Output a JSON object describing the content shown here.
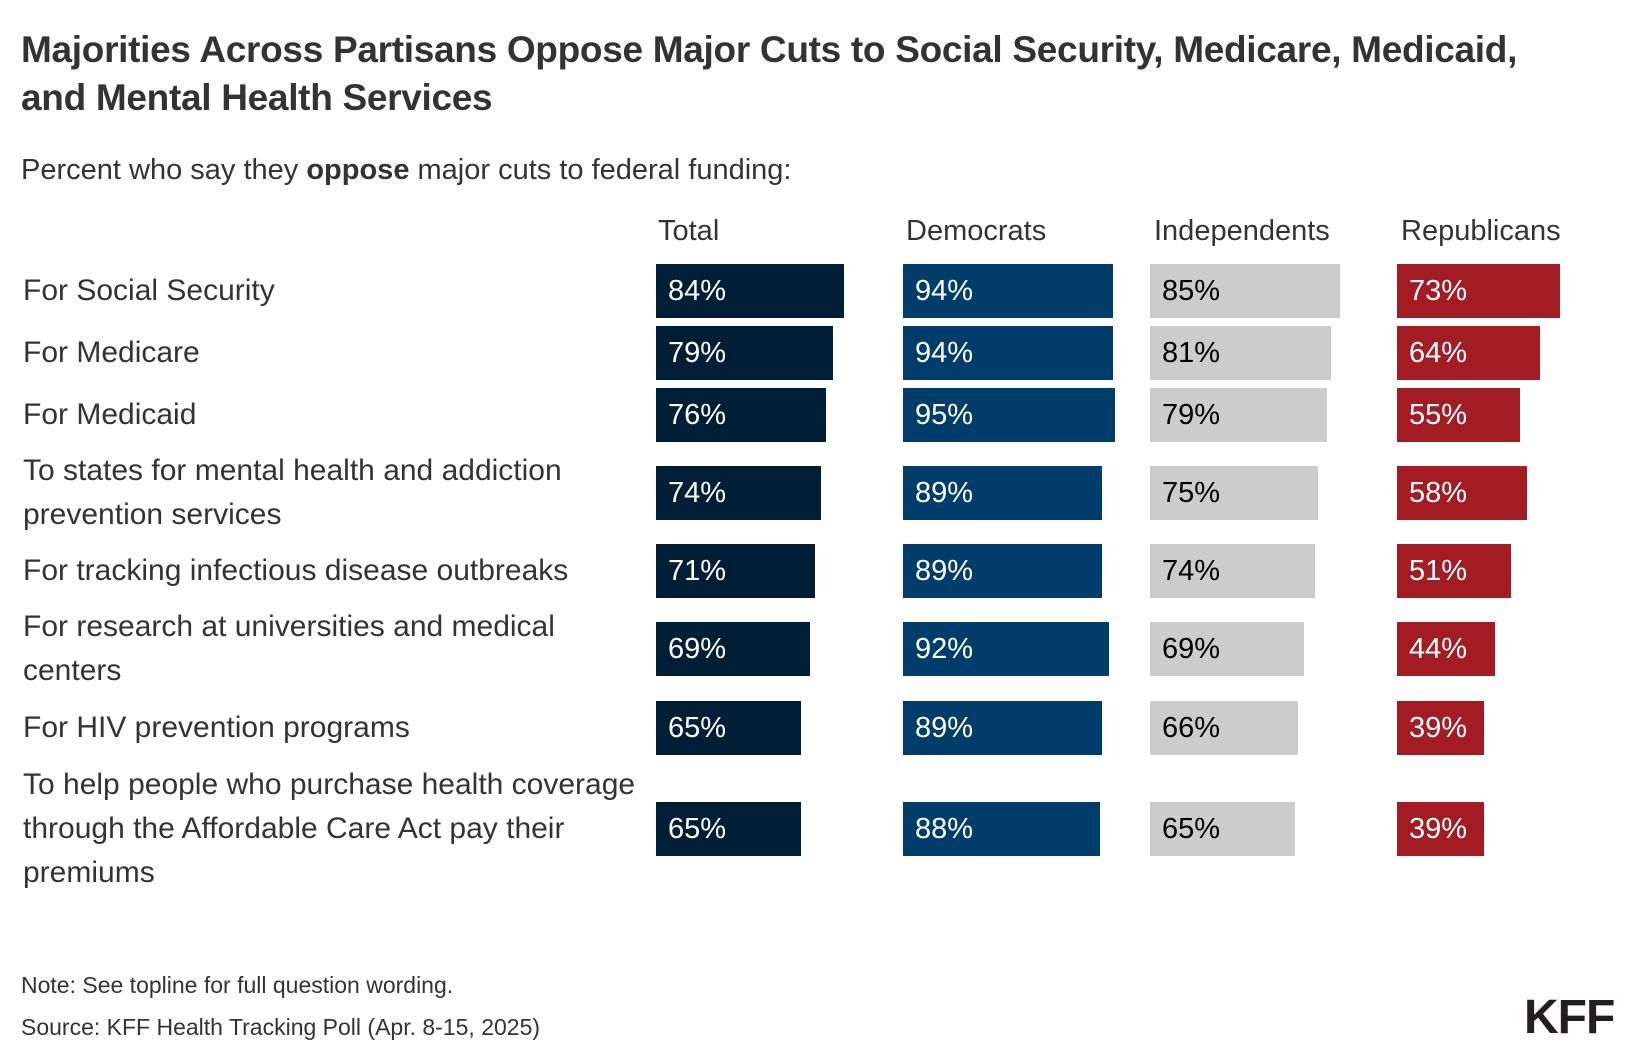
{
  "header": {
    "title": "Majorities Across Partisans Oppose Major Cuts to Social Security, Medicare, Medicaid, and Mental Health Services",
    "subtitle_pre": "Percent who say they ",
    "subtitle_bold": "oppose",
    "subtitle_post": " major cuts to federal funding:"
  },
  "footer": {
    "note": "Note: See topline for full question wording.",
    "source": "Source: KFF Health Tracking Poll (Apr. 8-15, 2025)",
    "logo": "KFF"
  },
  "chart_data": {
    "type": "bar",
    "orientation": "horizontal",
    "layout": "small-multiples",
    "title": "Majorities Across Partisans Oppose Major Cuts to Social Security, Medicare, Medicaid, and Mental Health Services",
    "subtitle": "Percent who say they oppose major cuts to federal funding:",
    "xlim": [
      0,
      100
    ],
    "unit": "%",
    "categories": [
      "For Social Security",
      "For Medicare",
      "For Medicaid",
      "To states for mental health and addiction prevention services",
      "For tracking infectious disease outbreaks",
      "For research at universities and medical centers",
      "For HIV prevention programs",
      "To help people who purchase health coverage through the Affordable Care Act pay their premiums"
    ],
    "series": [
      {
        "name": "Total",
        "color": "#001e36",
        "label_color": "#ffffff",
        "values": [
          84,
          79,
          76,
          74,
          71,
          69,
          65,
          65
        ]
      },
      {
        "name": "Democrats",
        "color": "#003d6b",
        "label_color": "#ffffff",
        "values": [
          94,
          94,
          95,
          89,
          89,
          92,
          89,
          88
        ]
      },
      {
        "name": "Independents",
        "color": "#cccccc",
        "label_color": "#000000",
        "values": [
          85,
          81,
          79,
          75,
          74,
          69,
          66,
          65
        ]
      },
      {
        "name": "Republicans",
        "color": "#a31c23",
        "label_color": "#ffffff",
        "values": [
          73,
          64,
          55,
          58,
          51,
          44,
          39,
          39
        ]
      }
    ],
    "data_labels": true,
    "grid": false,
    "legend": "none"
  }
}
